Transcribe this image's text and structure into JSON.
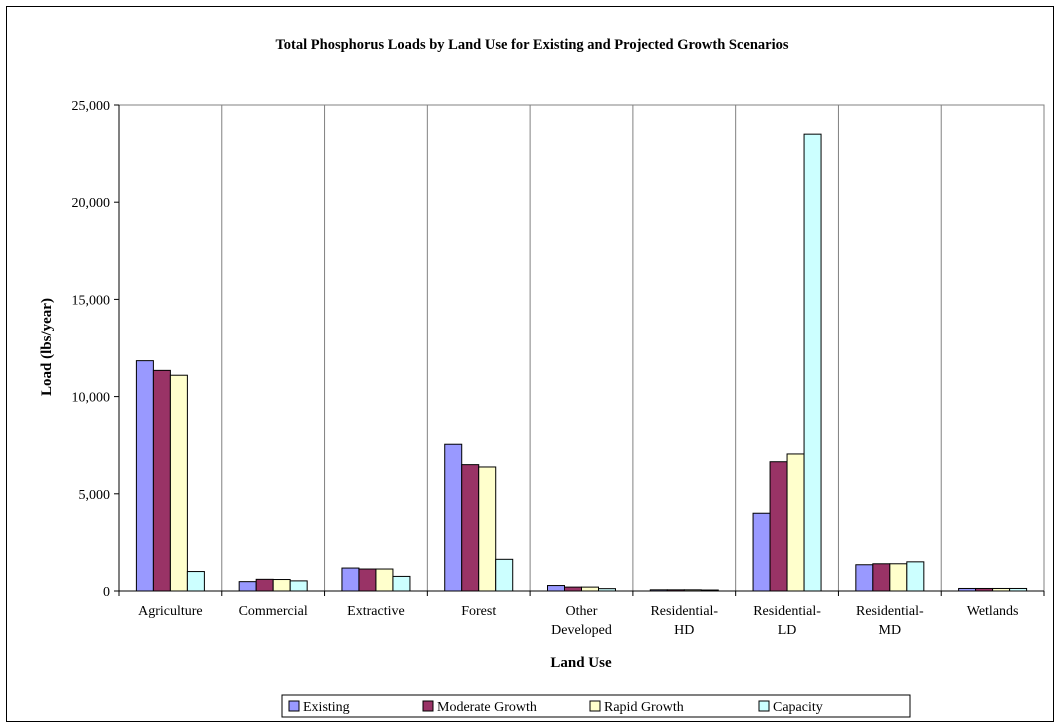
{
  "chart_data": {
    "type": "bar",
    "title": "Total Phosphorus Loads by Land Use for Existing and Projected Growth Scenarios",
    "xlabel": "Land Use",
    "ylabel": "Load (lbs/year)",
    "ylim": [
      0,
      25000
    ],
    "yticks": [
      0,
      5000,
      10000,
      15000,
      20000,
      25000
    ],
    "ytick_labels": [
      "0",
      "5,000",
      "10,000",
      "15,000",
      "20,000",
      "25,000"
    ],
    "grid": "vertical category separators",
    "legend_position": "bottom",
    "categories": [
      [
        "Agriculture"
      ],
      [
        "Commercial"
      ],
      [
        "Extractive"
      ],
      [
        "Forest"
      ],
      [
        "Other",
        "Developed"
      ],
      [
        "Residential-",
        "HD"
      ],
      [
        "Residential-",
        "LD"
      ],
      [
        "Residential-",
        "MD"
      ],
      [
        "Wetlands"
      ]
    ],
    "series": [
      {
        "name": "Existing",
        "color": "#9999ff",
        "values": [
          11850,
          480,
          1180,
          7550,
          280,
          60,
          4000,
          1350,
          130
        ]
      },
      {
        "name": "Moderate Growth",
        "color": "#993366",
        "values": [
          11350,
          600,
          1130,
          6500,
          200,
          60,
          6650,
          1400,
          130
        ]
      },
      {
        "name": "Rapid Growth",
        "color": "#ffffcc",
        "values": [
          11100,
          590,
          1130,
          6380,
          200,
          60,
          7050,
          1400,
          130
        ]
      },
      {
        "name": "Capacity",
        "color": "#ccffff",
        "values": [
          1000,
          520,
          750,
          1630,
          120,
          50,
          23500,
          1500,
          130
        ]
      }
    ]
  }
}
